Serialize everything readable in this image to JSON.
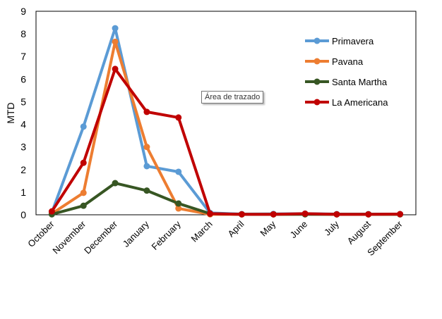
{
  "chart_data": {
    "type": "line",
    "title": "",
    "xlabel": "",
    "ylabel": "MTD",
    "ylim": [
      0,
      9
    ],
    "yticks": [
      0,
      1,
      2,
      3,
      4,
      5,
      6,
      7,
      8,
      9
    ],
    "grid": false,
    "legend_position": "top-right",
    "categories": [
      "October",
      "November",
      "December",
      "January",
      "February",
      "March",
      "April",
      "May",
      "June",
      "July",
      "August",
      "September"
    ],
    "series": [
      {
        "name": "Primavera",
        "color": "#5B9BD5",
        "values": [
          0.1,
          3.9,
          8.25,
          2.15,
          1.9,
          0.08,
          0.03,
          0.04,
          0.05,
          0.03,
          0.03,
          0.03
        ]
      },
      {
        "name": "Pavana",
        "color": "#ED7D31",
        "values": [
          0.05,
          0.97,
          7.65,
          3.0,
          0.28,
          0.02,
          0.02,
          0.02,
          0.03,
          0.02,
          0.02,
          0.02
        ]
      },
      {
        "name": "Santa Martha",
        "color": "#375623",
        "values": [
          0.02,
          0.4,
          1.4,
          1.07,
          0.5,
          0.05,
          0.02,
          0.02,
          0.02,
          0.02,
          0.02,
          0.02
        ]
      },
      {
        "name": "La Americana",
        "color": "#C00000",
        "values": [
          0.15,
          2.3,
          6.45,
          4.55,
          4.3,
          0.05,
          0.02,
          0.02,
          0.05,
          0.02,
          0.02,
          0.03
        ]
      }
    ]
  },
  "tooltip": "Área de trazado"
}
